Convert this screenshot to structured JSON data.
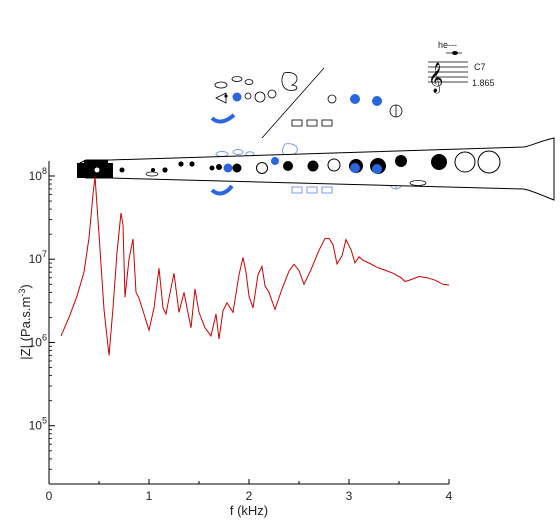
{
  "chart_data": {
    "type": "line",
    "title": "",
    "xlabel": "f (kHz)",
    "ylabel_base": "|Z| (Pa.s.m",
    "ylabel_exp": "-3",
    "ylabel_end": ")",
    "xlim": [
      0,
      4
    ],
    "ylim_log10": [
      4.3,
      8.18
    ],
    "x_ticks": [
      0,
      1,
      2,
      3,
      4
    ],
    "x_tick_labels": [
      "0",
      "1",
      "2",
      "3",
      "4"
    ],
    "y_ticks_log10": [
      5,
      6,
      7,
      8
    ],
    "y_tick_labels": [
      {
        "base": "10",
        "exp": "5"
      },
      {
        "base": "10",
        "exp": "6"
      },
      {
        "base": "10",
        "exp": "7"
      },
      {
        "base": "10",
        "exp": "8"
      }
    ],
    "y_scale": "log",
    "series": [
      {
        "color": "#cc0000",
        "x": [
          0.12,
          0.2,
          0.28,
          0.35,
          0.4,
          0.44,
          0.46,
          0.5,
          0.55,
          0.6,
          0.64,
          0.68,
          0.72,
          0.74,
          0.76,
          0.8,
          0.84,
          0.87,
          0.9,
          0.95,
          1.0,
          1.05,
          1.1,
          1.14,
          1.17,
          1.2,
          1.25,
          1.3,
          1.35,
          1.38,
          1.42,
          1.46,
          1.5,
          1.56,
          1.62,
          1.67,
          1.7,
          1.74,
          1.78,
          1.84,
          1.9,
          1.94,
          1.97,
          2.0,
          2.04,
          2.09,
          2.13,
          2.16,
          2.2,
          2.26,
          2.33,
          2.4,
          2.45,
          2.5,
          2.55,
          2.62,
          2.7,
          2.76,
          2.8,
          2.84,
          2.88,
          2.93,
          2.97,
          3.02,
          3.06,
          3.1,
          3.14,
          3.2,
          3.28,
          3.36,
          3.44,
          3.52,
          3.56,
          3.62,
          3.7,
          3.78,
          3.86,
          3.94,
          4.0
        ],
        "y": [
          1200000.0,
          2000000.0,
          3600000.0,
          7000000.0,
          18000000.0,
          60000000.0,
          98000000.0,
          20000000.0,
          2500000.0,
          700000.0,
          2600000.0,
          12000000.0,
          36000000.0,
          26000000.0,
          3500000.0,
          10000000.0,
          17500000.0,
          4000000.0,
          3400000.0,
          2200000.0,
          1400000.0,
          2600000.0,
          7800000.0,
          2600000.0,
          2200000.0,
          3400000.0,
          6800000.0,
          2300000.0,
          4000000.0,
          2600000.0,
          1500000.0,
          4400000.0,
          2300000.0,
          1500000.0,
          1200000.0,
          2200000.0,
          1100000.0,
          2400000.0,
          3000000.0,
          2300000.0,
          6500000.0,
          10500000.0,
          7000000.0,
          3600000.0,
          2600000.0,
          6500000.0,
          8200000.0,
          4800000.0,
          4000000.0,
          2500000.0,
          4400000.0,
          7200000.0,
          8700000.0,
          7300000.0,
          5000000.0,
          7500000.0,
          12800000.0,
          17800000.0,
          17800000.0,
          15000000.0,
          8800000.0,
          11000000.0,
          17200000.0,
          13000000.0,
          9000000.0,
          10700000.0,
          9700000.0,
          9000000.0,
          8000000.0,
          7400000.0,
          6800000.0,
          6000000.0,
          5400000.0,
          5700000.0,
          6200000.0,
          6000000.0,
          5600000.0,
          5000000.0,
          4900000.0
        ]
      }
    ],
    "grid": false,
    "legend": "none"
  },
  "annotations": {
    "note_name": "C7",
    "note_frequency": "1.865",
    "dynamic_mark": "he---"
  },
  "colors": {
    "curve": "#cc0000",
    "open_hole_blue": "#2a66e0",
    "key_outline": "#000000",
    "light_blue_keys": "#6c93e8"
  },
  "icons": {
    "clarinet": "clarinet-diagram-icon",
    "treble_clef": "treble-clef-icon"
  }
}
